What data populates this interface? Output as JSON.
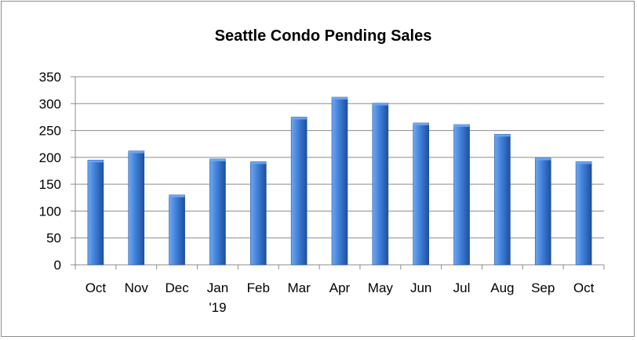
{
  "chart_data": {
    "type": "bar",
    "title": "Seattle Condo Pending Sales",
    "xlabel": "",
    "ylabel": "",
    "categories": [
      "Oct",
      "Nov",
      "Dec",
      "Jan\n'19",
      "Feb",
      "Mar",
      "Apr",
      "May",
      "Jun",
      "Jul",
      "Aug",
      "Sep",
      "Oct"
    ],
    "values": [
      195,
      212,
      130,
      197,
      192,
      275,
      312,
      301,
      264,
      261,
      243,
      199,
      192
    ],
    "ylim": [
      0,
      350
    ],
    "yticks": [
      0,
      50,
      100,
      150,
      200,
      250,
      300,
      350
    ],
    "grid": true,
    "legend": "none",
    "colors": {
      "bar_light": "#6fa8f0",
      "bar_mid": "#3f7fd8",
      "bar_dark": "#1f4f9e",
      "grid": "#8c8c8c",
      "axis": "#8c8c8c"
    }
  }
}
